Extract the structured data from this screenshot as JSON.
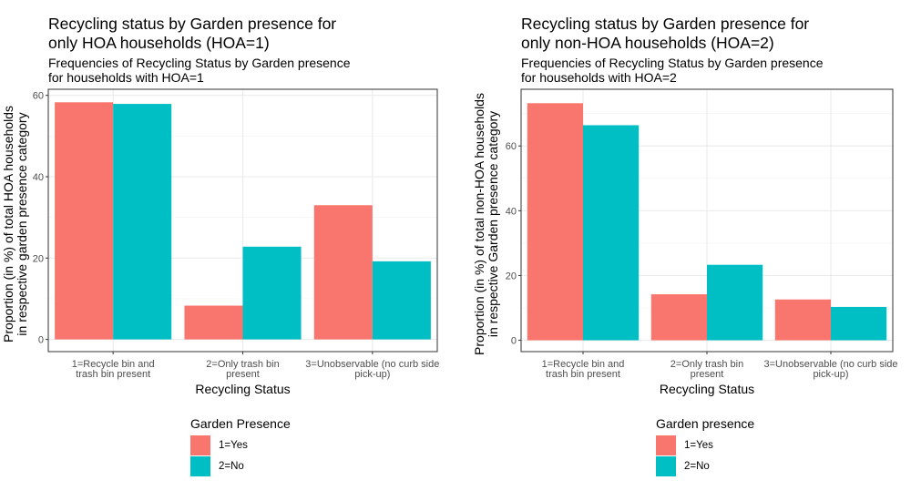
{
  "chart_data": [
    {
      "type": "bar",
      "title": "Recycling status by Garden presence for\nonly HOA households (HOA=1)",
      "subtitle": "Frequencies of Recycling Status by Garden presence\nfor households with HOA=1",
      "xlabel": "Recycling Status",
      "ylabel": [
        "Proportion (in %) of total HOA households",
        "in respective garden presence category"
      ],
      "categories": [
        [
          "1=Recycle bin and",
          "trash bin present"
        ],
        [
          "2=Only trash bin",
          "present"
        ],
        [
          "3=Unobservable (no curb side",
          "pick-up)"
        ]
      ],
      "series": [
        {
          "name": "1=Yes",
          "color": "#F8766D",
          "values": [
            58.3,
            8.3,
            33.0
          ]
        },
        {
          "name": "2=No",
          "color": "#00BFC4",
          "values": [
            57.9,
            22.8,
            19.2
          ]
        }
      ],
      "ylim": [
        -3,
        61.5
      ],
      "yticks": [
        0,
        20,
        40,
        60
      ],
      "grid": true,
      "legend": {
        "title": "Garden Presence",
        "position": "bottom"
      }
    },
    {
      "type": "bar",
      "title": "Recycling status by Garden presence for\nonly non-HOA households (HOA=2)",
      "subtitle": "Frequencies of Recycling Status by Garden presence\nfor households with HOA=2",
      "xlabel": "Recycling Status",
      "ylabel": [
        "Proportion (in %) of total non-HOA households",
        "in respective Garden presence category"
      ],
      "categories": [
        [
          "1=Recycle bin and",
          "trash bin present"
        ],
        [
          "2=Only trash bin",
          "present"
        ],
        [
          "3=Unobservable (no curb side",
          "pick-up)"
        ]
      ],
      "series": [
        {
          "name": "1=Yes",
          "color": "#F8766D",
          "values": [
            73.2,
            14.2,
            12.6
          ]
        },
        {
          "name": "2=No",
          "color": "#00BFC4",
          "values": [
            66.4,
            23.3,
            10.3
          ]
        }
      ],
      "ylim": [
        -3.5,
        77.5
      ],
      "yticks": [
        0,
        20,
        40,
        60
      ],
      "grid": true,
      "legend": {
        "title": "Garden presence",
        "position": "bottom"
      }
    }
  ]
}
